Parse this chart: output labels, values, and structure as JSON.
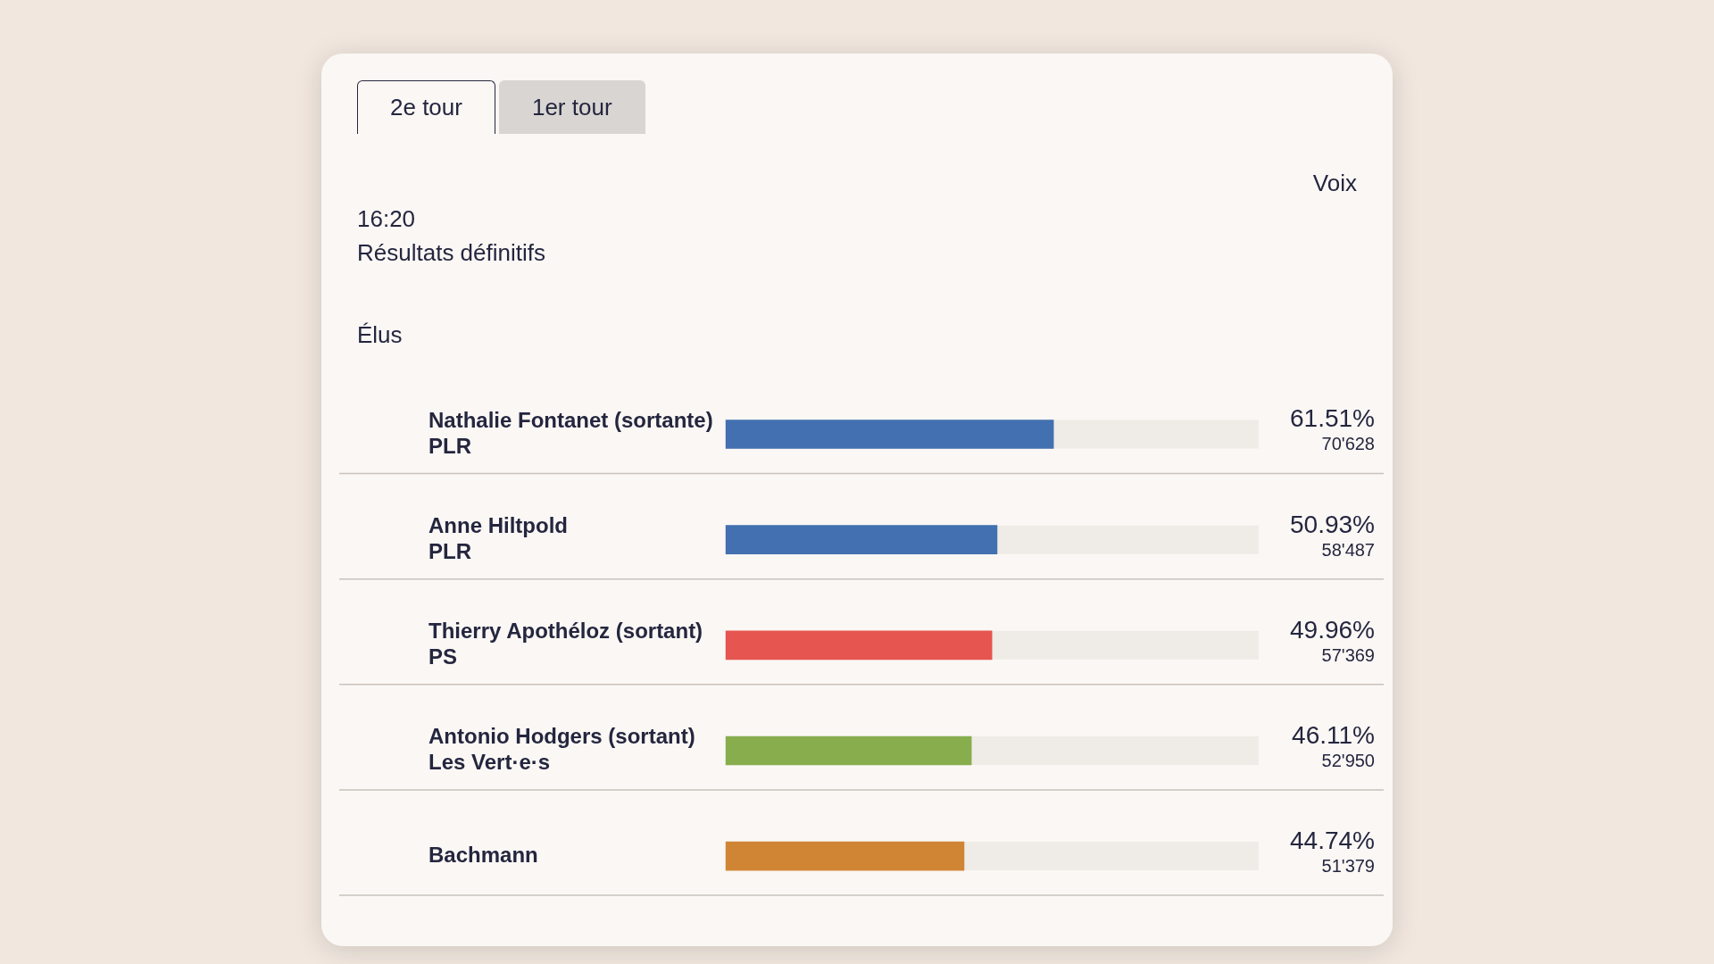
{
  "chart_data": {
    "type": "bar",
    "orientation": "horizontal",
    "categories": [
      "Nathalie Fontanet (sortante)\nPLR",
      "Anne Hiltpold\nPLR",
      "Thierry Apothéloz (sortant)\nPS",
      "Antonio Hodgers (sortant)\nLes Vert·e·s",
      "Bachmann"
    ],
    "values": [
      61.51,
      50.93,
      49.96,
      46.11,
      44.74
    ],
    "colors": [
      "#4270b0",
      "#4270b0",
      "#e6554f",
      "#87ad4d",
      "#d08535"
    ],
    "value_labels": [
      "61.51%\n70'628",
      "50.93%\n58'487",
      "49.96%\n57'369",
      "46.11%\n52'950",
      "44.74%\n51'379"
    ],
    "xlim": [
      0,
      100
    ],
    "tick_labels": "y",
    "grid": false,
    "legend": false,
    "annotations": [
      "2e tour",
      "1er tour",
      "Voix",
      "16:20",
      "Résultats définitifs",
      "Élus"
    ]
  }
}
